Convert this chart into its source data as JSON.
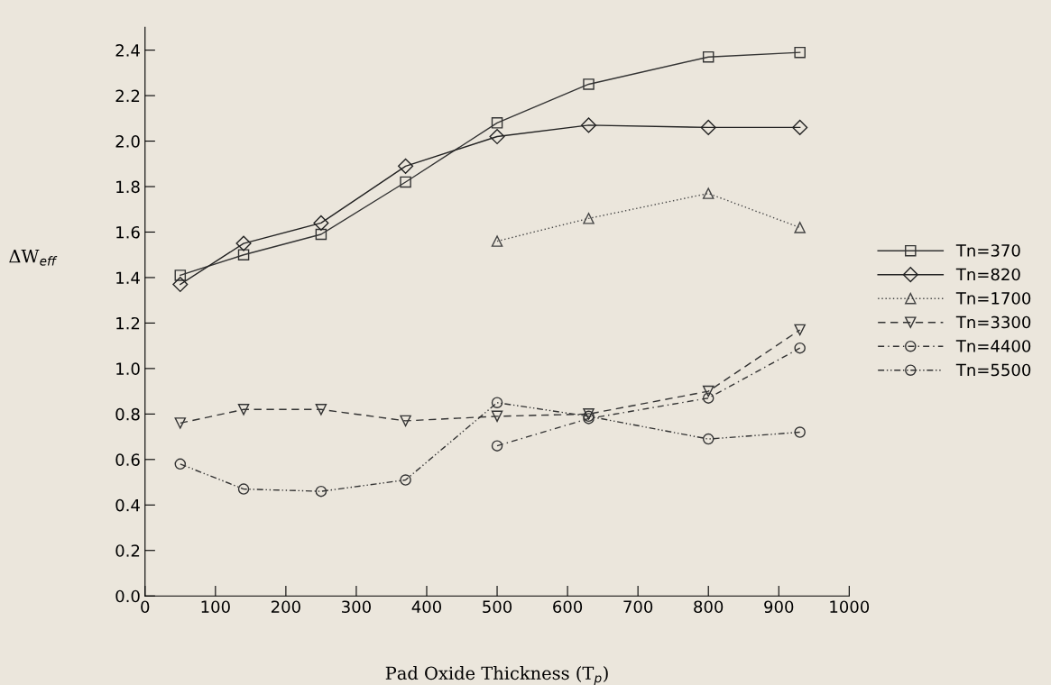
{
  "chart_data": {
    "type": "line",
    "xlabel": "Pad Oxide Thickness (T$_{p}$)",
    "ylabel": "ΔW$_{eff}$",
    "xlim": [
      0,
      1000
    ],
    "xticks": [
      0,
      100,
      200,
      300,
      400,
      500,
      600,
      700,
      800,
      900,
      1000
    ],
    "ylim": [
      0,
      2.5
    ],
    "yticks": [
      {
        "value": 0,
        "label": "0.0"
      },
      0.2,
      0.4,
      0.6,
      0.8,
      {
        "value": 1.0,
        "label": "1.0"
      },
      1.2,
      1.4,
      1.6,
      1.8,
      {
        "value": 2.0,
        "label": "2.0"
      },
      2.2,
      2.4
    ],
    "grid": false,
    "legend": "right",
    "series": [
      {
        "name": "Tn=370",
        "color": "#333333",
        "marker": "square",
        "line_style": "solid",
        "x": [
          50,
          140,
          250,
          370,
          500,
          630,
          800,
          930
        ],
        "values": [
          1.41,
          1.5,
          1.59,
          1.82,
          2.08,
          2.25,
          2.37,
          2.39
        ]
      },
      {
        "name": "Tn=820",
        "color": "#222222",
        "marker": "diamond",
        "line_style": "solid",
        "x": [
          50,
          140,
          250,
          370,
          500,
          630,
          800,
          930
        ],
        "values": [
          1.37,
          1.55,
          1.64,
          1.89,
          2.02,
          2.07,
          2.06,
          2.06
        ]
      },
      {
        "name": "Tn=1700",
        "color": "#444444",
        "marker": "triangle",
        "line_style": "dotted",
        "x": [
          500,
          630,
          800,
          930
        ],
        "values": [
          1.56,
          1.66,
          1.77,
          1.62
        ]
      },
      {
        "name": "Tn=3300",
        "color": "#333333",
        "marker": "triangle_down",
        "line_style": "dashed",
        "x": [
          50,
          140,
          250,
          370,
          500,
          630,
          800,
          930
        ],
        "values": [
          0.76,
          0.82,
          0.82,
          0.77,
          0.79,
          0.8,
          0.9,
          1.17
        ]
      },
      {
        "name": "Tn=4400",
        "color": "#333333",
        "marker": "circle",
        "line_style": "dashdot",
        "x": [
          500,
          630,
          800,
          930
        ],
        "values": [
          0.66,
          0.78,
          0.87,
          1.09
        ]
      },
      {
        "name": "Tn=5500",
        "color": "#333333",
        "marker": "circle",
        "line_style": "dashdotdot",
        "x": [
          50,
          140,
          250,
          370,
          500,
          630,
          800,
          930
        ],
        "values": [
          0.58,
          0.47,
          0.46,
          0.51,
          0.85,
          0.79,
          0.69,
          0.72
        ]
      }
    ]
  }
}
